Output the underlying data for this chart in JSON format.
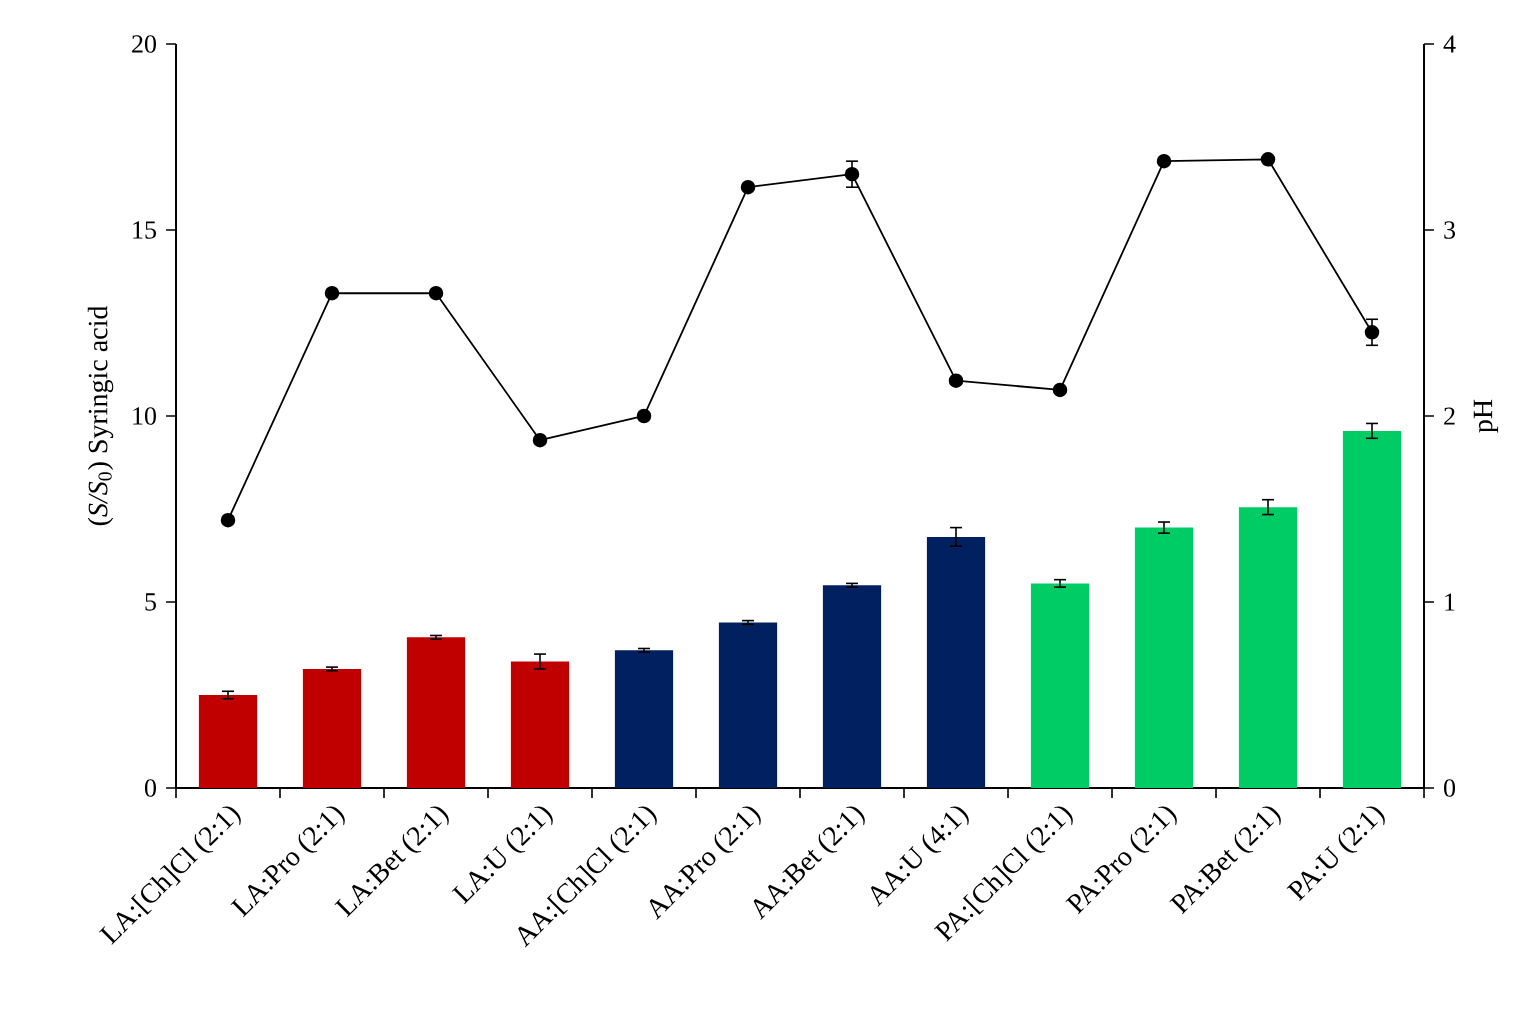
{
  "chart_data": {
    "type": "bar",
    "categories": [
      "LA:[Ch]Cl (2:1)",
      "LA:Pro (2:1)",
      "LA:Bet (2:1)",
      "LA:U (2:1)",
      "AA:[Ch]Cl (2:1)",
      "AA:Pro (2:1)",
      "AA:Bet  (2:1)",
      "AA:U (4:1)",
      "PA:[Ch]Cl (2:1)",
      "PA:Pro (2:1)",
      "PA:Bet (2:1)",
      "PA:U (2:1)"
    ],
    "ylabel": "(*S/S*$_{0}$) Syringic acid",
    "y2label": "pH",
    "ylim": [
      0,
      20
    ],
    "yticks": [
      0,
      5,
      10,
      15,
      20
    ],
    "y2lim": [
      0,
      4
    ],
    "y2ticks": [
      0,
      1,
      2,
      3,
      4
    ],
    "grid": false,
    "series": [
      {
        "colors": [
          "#c00000",
          "#c00000",
          "#c00000",
          "#c00000",
          "#002060",
          "#002060",
          "#002060",
          "#002060",
          "#00cc66",
          "#00cc66",
          "#00cc66",
          "#00cc66"
        ],
        "values": [
          2.5,
          3.2,
          4.05,
          3.4,
          3.7,
          4.45,
          5.45,
          6.75,
          5.5,
          7.0,
          7.55,
          9.6
        ],
        "errors": [
          0.1,
          0.05,
          0.05,
          0.2,
          0.05,
          0.05,
          0.05,
          0.25,
          0.1,
          0.15,
          0.2,
          0.2
        ]
      },
      {
        "type": "line",
        "axis": "y2",
        "color": "#000000",
        "marker": "circle",
        "line_style": "solid",
        "values": [
          1.44,
          2.66,
          2.66,
          1.87,
          2.0,
          3.23,
          3.3,
          2.19,
          2.14,
          3.37,
          3.38,
          2.45
        ],
        "errors": [
          null,
          null,
          null,
          null,
          null,
          null,
          0.07,
          null,
          null,
          null,
          null,
          0.07
        ]
      }
    ]
  }
}
